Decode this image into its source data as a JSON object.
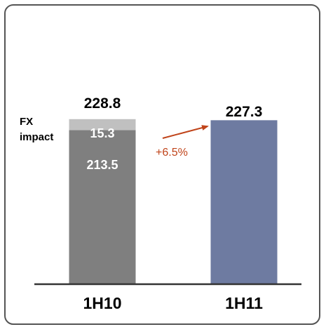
{
  "chart_data": {
    "type": "bar",
    "stacked": true,
    "categories": [
      "1H10",
      "1H11"
    ],
    "series": [
      {
        "values": [
          213.5,
          227.3
        ],
        "colors": [
          "#7f7f7f",
          "#6e7ba1"
        ]
      },
      {
        "name": "FX impact",
        "values": [
          15.3,
          0
        ],
        "colors": [
          "#c0c0c0",
          "#c0c0c0"
        ]
      }
    ],
    "totals": [
      "228.8",
      "227.3"
    ],
    "segment_labels": [
      "213.5",
      "15.3"
    ],
    "annotation": {
      "text": "+6.5%",
      "color": "#c0441a"
    },
    "legend_label": {
      "line1": "FX",
      "line2": "impact"
    },
    "ylim": [
      0,
      300
    ],
    "grid": false,
    "title": "",
    "xlabel": "",
    "ylabel": ""
  },
  "colors": {
    "frame": "#555555",
    "axis": "#333333",
    "text": "#000000",
    "segment_text": "#ffffff"
  }
}
